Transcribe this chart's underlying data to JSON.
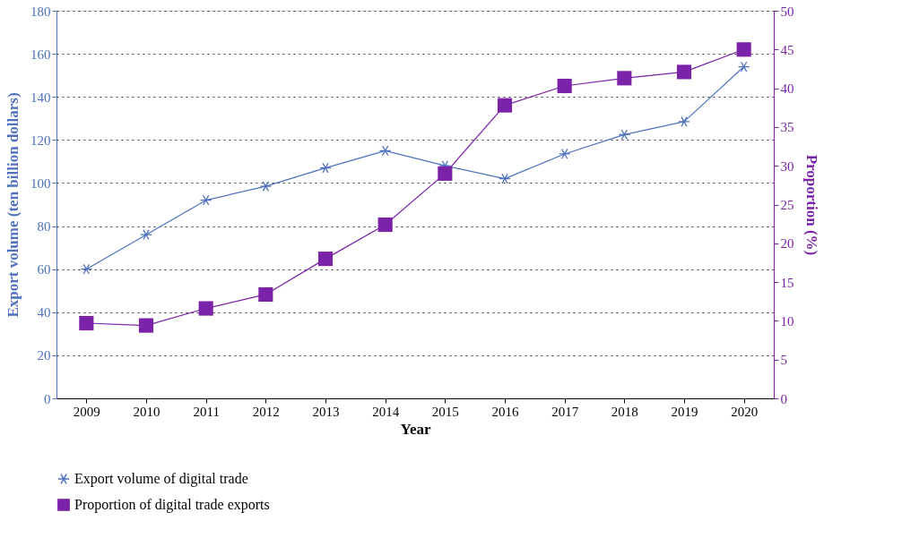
{
  "chart_data": {
    "type": "line",
    "xlabel": "Year",
    "ylabel": "Export volume (ten billion dollars)",
    "y2label": "Proportion (%)",
    "categories": [
      "2009",
      "2010",
      "2011",
      "2012",
      "2013",
      "2014",
      "2015",
      "2016",
      "2017",
      "2018",
      "2019",
      "2020"
    ],
    "series": [
      {
        "name": "Export volume of digital trade",
        "color": "#4f71be",
        "marker": "cross",
        "values": [
          60,
          76,
          92,
          98.5,
          107,
          115,
          108,
          102,
          113.5,
          122.5,
          128.5,
          154
        ]
      },
      {
        "name": "Proportion of digital trade exports",
        "color": "#7a22a8",
        "marker": "square",
        "axis": "y2",
        "values": [
          9.7,
          9.4,
          11.6,
          13.4,
          18,
          22.4,
          29,
          37.8,
          40.3,
          41.3,
          42.1,
          45
        ]
      }
    ],
    "ylim": [
      0,
      180
    ],
    "yticks": [
      0,
      20,
      40,
      60,
      80,
      100,
      120,
      140,
      160,
      180
    ],
    "y2lim": [
      0,
      50
    ],
    "y2ticks": [
      0,
      5,
      10,
      15,
      20,
      25,
      30,
      35,
      40,
      45,
      50
    ],
    "grid": "y",
    "legend": "bottom",
    "line_style": "solid"
  }
}
